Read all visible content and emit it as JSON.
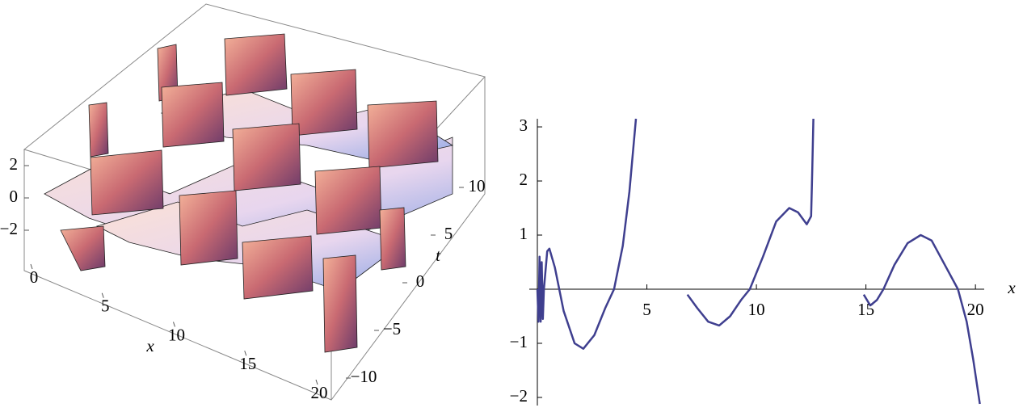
{
  "chart_data": [
    {
      "type": "surface3d",
      "xlabel": "x",
      "ylabel": "t",
      "xlim": [
        0,
        20
      ],
      "xticks": [
        0,
        5,
        10,
        15,
        20
      ],
      "ylim": [
        -11.5,
        11.5
      ],
      "yticks": [
        {
          "value": -10,
          "label": "−10"
        },
        {
          "value": -5,
          "label": "−5"
        },
        0,
        5,
        10
      ],
      "zlim": [
        -4.5,
        3
      ],
      "zticks": [
        {
          "value": -2,
          "label": "−2"
        },
        0,
        2
      ]
    },
    {
      "type": "line",
      "xlabel": "x",
      "color": "#3f3f8f",
      "xlim": [
        0,
        20.4
      ],
      "xticks": [
        5,
        10,
        15,
        20
      ],
      "ylim": [
        -2.15,
        3.15
      ],
      "yticks": [
        {
          "value": -2,
          "label": "−2"
        },
        {
          "value": -1,
          "label": "−1"
        },
        1,
        2,
        3
      ],
      "x": [
        0,
        0.05,
        0.1,
        0.15,
        0.2,
        0.25,
        0.3,
        0.45,
        0.55,
        0.8,
        1.2,
        1.7,
        2.1,
        2.6,
        3.1,
        3.5,
        3.9,
        4.2,
        4.5,
        5.5,
        6.85,
        7.3,
        7.8,
        8.3,
        8.8,
        9.3,
        9.7,
        10.3,
        10.9,
        11.5,
        11.9,
        12.3,
        12.5,
        12.55,
        12.6,
        13.5,
        14.9,
        15.2,
        15.5,
        15.8,
        16.3,
        16.9,
        17.5,
        18.0,
        18.6,
        19.2,
        19.6,
        19.9,
        20.2
      ],
      "values": [
        0,
        -0.6,
        0.6,
        -0.6,
        0.5,
        -0.55,
        0,
        0.7,
        0.75,
        0.4,
        -0.4,
        -1.0,
        -1.1,
        -0.85,
        -0.35,
        0,
        0.8,
        1.8,
        3.15,
        null,
        -0.1,
        -0.35,
        -0.6,
        -0.67,
        -0.5,
        -0.2,
        0,
        0.6,
        1.25,
        1.5,
        1.42,
        1.2,
        1.35,
        2.2,
        3.15,
        null,
        -0.1,
        -0.3,
        -0.2,
        0,
        0.45,
        0.85,
        1.0,
        0.9,
        0.45,
        0,
        -0.6,
        -1.3,
        -2.12
      ]
    }
  ]
}
